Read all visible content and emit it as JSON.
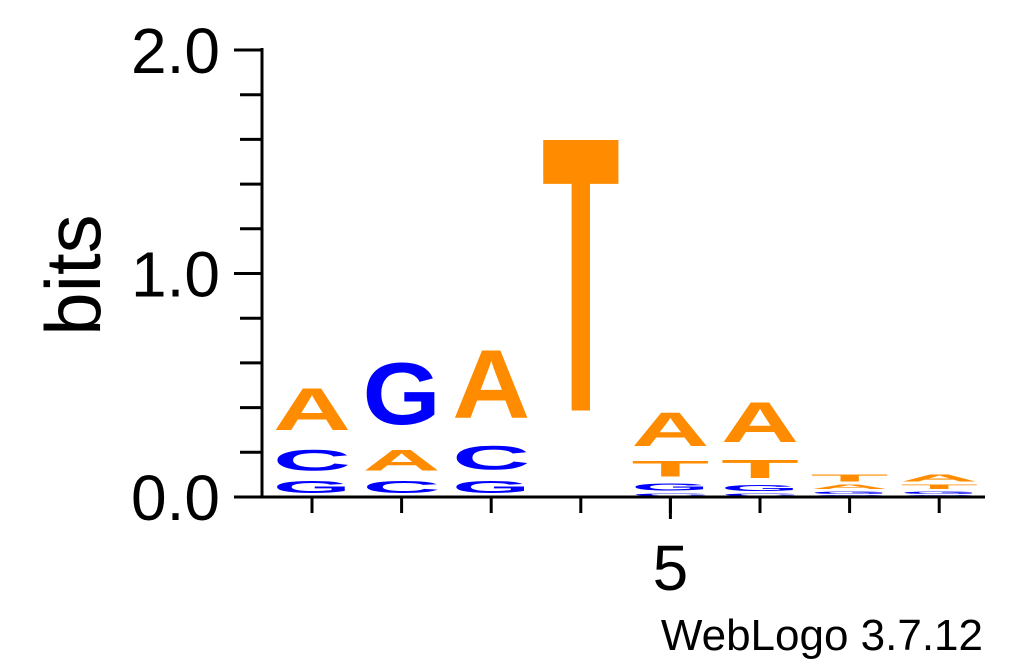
{
  "chart_data": {
    "type": "sequence-logo",
    "ylabel": "bits",
    "ylim": [
      0,
      2.0
    ],
    "y_ticks": [
      "0.0",
      "1.0",
      "2.0"
    ],
    "x_tick_labels": [
      {
        "position": 5,
        "label": "5"
      }
    ],
    "colors": {
      "A": "#ff8c00",
      "T": "#ff8c00",
      "C": "#0000ff",
      "G": "#0000ff"
    },
    "positions": [
      {
        "position": 1,
        "letters": [
          {
            "base": "G",
            "bits": 0.09
          },
          {
            "base": "C",
            "bits": 0.15
          },
          {
            "base": "A",
            "bits": 0.3
          }
        ]
      },
      {
        "position": 2,
        "letters": [
          {
            "base": "C",
            "bits": 0.09
          },
          {
            "base": "A",
            "bits": 0.15
          },
          {
            "base": "G",
            "bits": 0.44
          }
        ]
      },
      {
        "position": 3,
        "letters": [
          {
            "base": "G",
            "bits": 0.09
          },
          {
            "base": "C",
            "bits": 0.17
          },
          {
            "base": "A",
            "bits": 0.49
          }
        ]
      },
      {
        "position": 4,
        "letters": [
          {
            "base": "T",
            "bits": 1.97
          }
        ]
      },
      {
        "position": 5,
        "letters": [
          {
            "base": "C",
            "bits": 0.02
          },
          {
            "base": "G",
            "bits": 0.05
          },
          {
            "base": "T",
            "bits": 0.11
          },
          {
            "base": "A",
            "bits": 0.24
          }
        ]
      },
      {
        "position": 6,
        "letters": [
          {
            "base": "C",
            "bits": 0.02
          },
          {
            "base": "G",
            "bits": 0.04
          },
          {
            "base": "T",
            "bits": 0.13
          },
          {
            "base": "A",
            "bits": 0.29
          }
        ]
      },
      {
        "position": 7,
        "letters": [
          {
            "base": "C",
            "bits": 0.01
          },
          {
            "base": "G",
            "bits": 0.02
          },
          {
            "base": "A",
            "bits": 0.03
          },
          {
            "base": "T",
            "bits": 0.05
          }
        ]
      },
      {
        "position": 8,
        "letters": [
          {
            "base": "C",
            "bits": 0.01
          },
          {
            "base": "G",
            "bits": 0.02
          },
          {
            "base": "T",
            "bits": 0.03
          },
          {
            "base": "A",
            "bits": 0.05
          }
        ]
      }
    ]
  },
  "credit": "WebLogo 3.7.12"
}
